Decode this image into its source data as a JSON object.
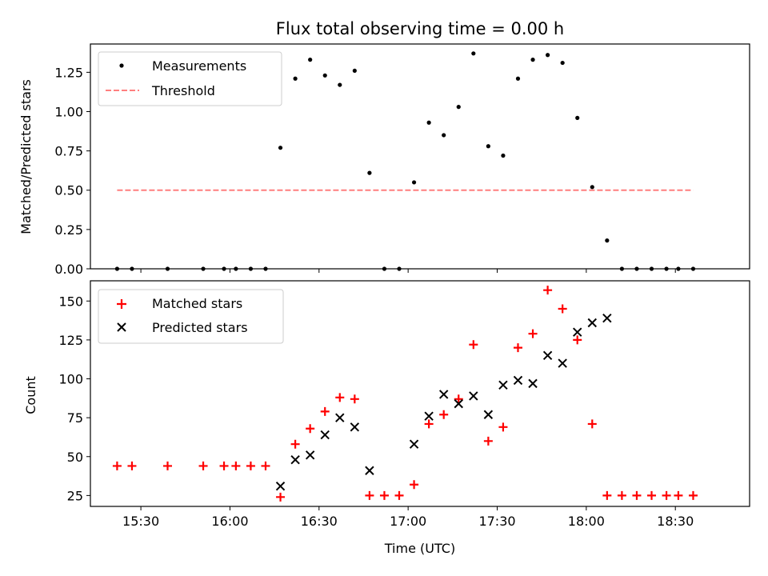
{
  "chart_data": [
    {
      "type": "scatter",
      "title": "Flux total observing time = 0.00 h",
      "ylabel": "Matched/Predicted stars",
      "xlabel": "",
      "xlim": [
        "15:13",
        "18:55"
      ],
      "ylim": [
        0,
        1.43
      ],
      "yticks": [
        "0.00",
        "0.25",
        "0.50",
        "0.75",
        "1.00",
        "1.25"
      ],
      "legend_position": "top-left",
      "grid": false,
      "series": [
        {
          "name": "Measurements",
          "marker": "dot",
          "color": "#000000",
          "points": [
            [
              "15:22",
              0.0
            ],
            [
              "15:27",
              0.0
            ],
            [
              "15:39",
              0.0
            ],
            [
              "15:51",
              0.0
            ],
            [
              "15:58",
              0.0
            ],
            [
              "16:02",
              0.0
            ],
            [
              "16:07",
              0.0
            ],
            [
              "16:12",
              0.0
            ],
            [
              "16:17",
              0.77
            ],
            [
              "16:22",
              1.21
            ],
            [
              "16:27",
              1.33
            ],
            [
              "16:32",
              1.23
            ],
            [
              "16:37",
              1.17
            ],
            [
              "16:42",
              1.26
            ],
            [
              "16:47",
              0.61
            ],
            [
              "16:52",
              0.0
            ],
            [
              "16:57",
              0.0
            ],
            [
              "17:02",
              0.55
            ],
            [
              "17:07",
              0.93
            ],
            [
              "17:12",
              0.85
            ],
            [
              "17:17",
              1.03
            ],
            [
              "17:22",
              1.37
            ],
            [
              "17:27",
              0.78
            ],
            [
              "17:32",
              0.72
            ],
            [
              "17:37",
              1.21
            ],
            [
              "17:42",
              1.33
            ],
            [
              "17:47",
              1.36
            ],
            [
              "17:52",
              1.31
            ],
            [
              "17:57",
              0.96
            ],
            [
              "18:02",
              0.52
            ],
            [
              "18:07",
              0.18
            ],
            [
              "18:12",
              0.0
            ],
            [
              "18:17",
              0.0
            ],
            [
              "18:22",
              0.0
            ],
            [
              "18:27",
              0.0
            ],
            [
              "18:31",
              0.0
            ],
            [
              "18:36",
              0.0
            ]
          ]
        },
        {
          "name": "Threshold",
          "marker": "dashed-line",
          "color": "#ff7f7f",
          "points": [
            [
              "15:22",
              0.5
            ],
            [
              "18:36",
              0.5
            ]
          ]
        }
      ]
    },
    {
      "type": "scatter",
      "title": "",
      "ylabel": "Count",
      "xlabel": "Time (UTC)",
      "xlim": [
        "15:13",
        "18:55"
      ],
      "ylim": [
        18,
        163
      ],
      "yticks": [
        "25",
        "50",
        "75",
        "100",
        "125",
        "150"
      ],
      "xticks": [
        "15:30",
        "16:00",
        "16:30",
        "17:00",
        "17:30",
        "18:00",
        "18:30"
      ],
      "legend_position": "top-left",
      "grid": false,
      "series": [
        {
          "name": "Matched stars",
          "marker": "plus",
          "color": "#ff0000",
          "points": [
            [
              "15:22",
              44
            ],
            [
              "15:27",
              44
            ],
            [
              "15:39",
              44
            ],
            [
              "15:51",
              44
            ],
            [
              "15:58",
              44
            ],
            [
              "16:02",
              44
            ],
            [
              "16:07",
              44
            ],
            [
              "16:12",
              44
            ],
            [
              "16:17",
              24
            ],
            [
              "16:22",
              58
            ],
            [
              "16:27",
              68
            ],
            [
              "16:32",
              79
            ],
            [
              "16:37",
              88
            ],
            [
              "16:42",
              87
            ],
            [
              "16:47",
              25
            ],
            [
              "16:52",
              25
            ],
            [
              "16:57",
              25
            ],
            [
              "17:02",
              32
            ],
            [
              "17:07",
              71
            ],
            [
              "17:12",
              77
            ],
            [
              "17:17",
              87
            ],
            [
              "17:22",
              122
            ],
            [
              "17:27",
              60
            ],
            [
              "17:32",
              69
            ],
            [
              "17:37",
              120
            ],
            [
              "17:42",
              129
            ],
            [
              "17:47",
              157
            ],
            [
              "17:52",
              145
            ],
            [
              "17:57",
              125
            ],
            [
              "18:02",
              71
            ],
            [
              "18:07",
              25
            ],
            [
              "18:12",
              25
            ],
            [
              "18:17",
              25
            ],
            [
              "18:22",
              25
            ],
            [
              "18:27",
              25
            ],
            [
              "18:31",
              25
            ],
            [
              "18:36",
              25
            ]
          ]
        },
        {
          "name": "Predicted stars",
          "marker": "x",
          "color": "#000000",
          "points": [
            [
              "16:17",
              31
            ],
            [
              "16:22",
              48
            ],
            [
              "16:27",
              51
            ],
            [
              "16:32",
              64
            ],
            [
              "16:37",
              75
            ],
            [
              "16:42",
              69
            ],
            [
              "16:47",
              41
            ],
            [
              "17:02",
              58
            ],
            [
              "17:07",
              76
            ],
            [
              "17:12",
              90
            ],
            [
              "17:17",
              84
            ],
            [
              "17:22",
              89
            ],
            [
              "17:27",
              77
            ],
            [
              "17:32",
              96
            ],
            [
              "17:37",
              99
            ],
            [
              "17:42",
              97
            ],
            [
              "17:47",
              115
            ],
            [
              "17:52",
              110
            ],
            [
              "17:57",
              130
            ],
            [
              "18:02",
              136
            ],
            [
              "18:07",
              139
            ]
          ]
        }
      ]
    }
  ]
}
